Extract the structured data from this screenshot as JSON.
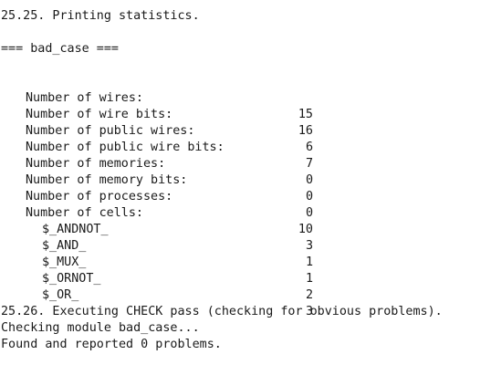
{
  "header": {
    "section_title": "25.25. Printing statistics.",
    "module_heading": "=== bad_case ==="
  },
  "stats": [
    {
      "label": "Number of wires:",
      "value": "15"
    },
    {
      "label": "Number of wire bits:",
      "value": "16"
    },
    {
      "label": "Number of public wires:",
      "value": "6"
    },
    {
      "label": "Number of public wire bits:",
      "value": "7"
    },
    {
      "label": "Number of memories:",
      "value": "0"
    },
    {
      "label": "Number of memory bits:",
      "value": "0"
    },
    {
      "label": "Number of processes:",
      "value": "0"
    },
    {
      "label": "Number of cells:",
      "value": "10"
    }
  ],
  "cells": [
    {
      "label": "$_ANDNOT_",
      "value": "3"
    },
    {
      "label": "$_AND_",
      "value": "1"
    },
    {
      "label": "$_MUX_",
      "value": "1"
    },
    {
      "label": "$_ORNOT_",
      "value": "2"
    },
    {
      "label": "$_OR_",
      "value": "3"
    }
  ],
  "footer": {
    "check_title": "25.26. Executing CHECK pass (checking for obvious problems).",
    "checking_line": "Checking module bad_case...",
    "result_line": "Found and reported 0 problems."
  }
}
